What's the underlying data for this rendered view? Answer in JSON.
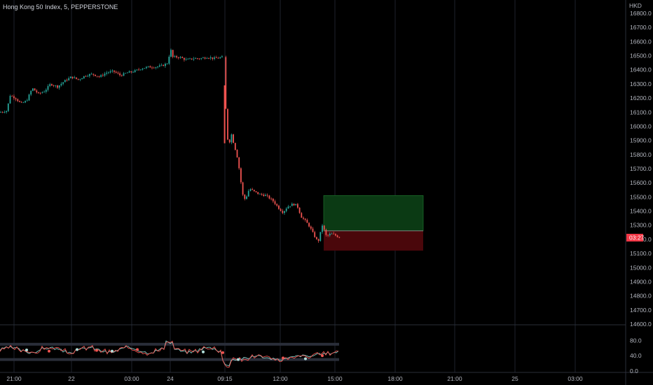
{
  "header": {
    "symbol": "Hong Kong 50 Index, 5, PEPPERSTONE",
    "currency": "HKD",
    "price_tag": "03:27"
  },
  "colors": {
    "bull": "#26a69a",
    "bear": "#ef5350",
    "long_zone": "#0b3a14",
    "short_zone": "#4a070b",
    "grid": "#1e222d",
    "price_tag": "#f23645"
  },
  "chart_data": [
    {
      "type": "candlestick",
      "title": "Hong Kong 50 Index, 5, PEPPERSTONE",
      "y_unit": "HKD",
      "ylim": [
        14600,
        16850
      ],
      "y_ticks": [
        16800.0,
        16700.0,
        16600.0,
        16500.0,
        16400.0,
        16300.0,
        16200.0,
        16100.0,
        16000.0,
        15900.0,
        15800.0,
        15700.0,
        15600.0,
        15500.0,
        15400.0,
        15300.0,
        15200.0,
        15100.0,
        15000.0,
        14900.0,
        14800.0,
        14700.0,
        14600.0
      ],
      "x_ticks": [
        "21:00",
        "22",
        "03:00",
        "24",
        "09:15",
        "12:00",
        "15:00",
        "18:00",
        "21:00",
        "25",
        "03:00"
      ],
      "current_price": 15210,
      "price_path": [
        [
          0,
          16100
        ],
        [
          10,
          16110
        ],
        [
          14,
          16220
        ],
        [
          22,
          16200
        ],
        [
          30,
          16160
        ],
        [
          38,
          16180
        ],
        [
          46,
          16270
        ],
        [
          55,
          16230
        ],
        [
          64,
          16250
        ],
        [
          72,
          16300
        ],
        [
          82,
          16280
        ],
        [
          92,
          16320
        ],
        [
          102,
          16350
        ],
        [
          112,
          16330
        ],
        [
          122,
          16360
        ],
        [
          132,
          16370
        ],
        [
          142,
          16350
        ],
        [
          152,
          16380
        ],
        [
          162,
          16390
        ],
        [
          172,
          16360
        ],
        [
          182,
          16380
        ],
        [
          192,
          16390
        ],
        [
          202,
          16410
        ],
        [
          212,
          16420
        ],
        [
          222,
          16420
        ],
        [
          232,
          16430
        ],
        [
          240,
          16450
        ],
        [
          243,
          16560
        ],
        [
          246,
          16490
        ],
        [
          256,
          16490
        ],
        [
          266,
          16470
        ],
        [
          276,
          16480
        ],
        [
          286,
          16480
        ],
        [
          296,
          16490
        ],
        [
          306,
          16480
        ],
        [
          318,
          16490
        ],
        [
          321,
          16290
        ],
        [
          323,
          16030
        ],
        [
          326,
          15850
        ],
        [
          330,
          15950
        ],
        [
          334,
          15870
        ],
        [
          338,
          15800
        ],
        [
          342,
          15680
        ],
        [
          346,
          15520
        ],
        [
          350,
          15480
        ],
        [
          356,
          15560
        ],
        [
          362,
          15540
        ],
        [
          370,
          15520
        ],
        [
          380,
          15510
        ],
        [
          390,
          15470
        ],
        [
          398,
          15420
        ],
        [
          404,
          15390
        ],
        [
          410,
          15430
        ],
        [
          418,
          15450
        ],
        [
          424,
          15440
        ],
        [
          430,
          15360
        ],
        [
          436,
          15330
        ],
        [
          442,
          15290
        ],
        [
          448,
          15230
        ],
        [
          454,
          15180
        ],
        [
          460,
          15300
        ],
        [
          466,
          15220
        ],
        [
          472,
          15240
        ],
        [
          478,
          15230
        ],
        [
          486,
          15210
        ]
      ],
      "positions": {
        "start_x": 462,
        "end_x": 604,
        "target": 15510,
        "entry": 15260,
        "stop": 15120
      }
    },
    {
      "type": "oscillator",
      "ylim": [
        0,
        100
      ],
      "y_ticks": [
        80.0,
        40.0,
        0.0
      ],
      "levels": [
        70,
        30
      ]
    }
  ]
}
